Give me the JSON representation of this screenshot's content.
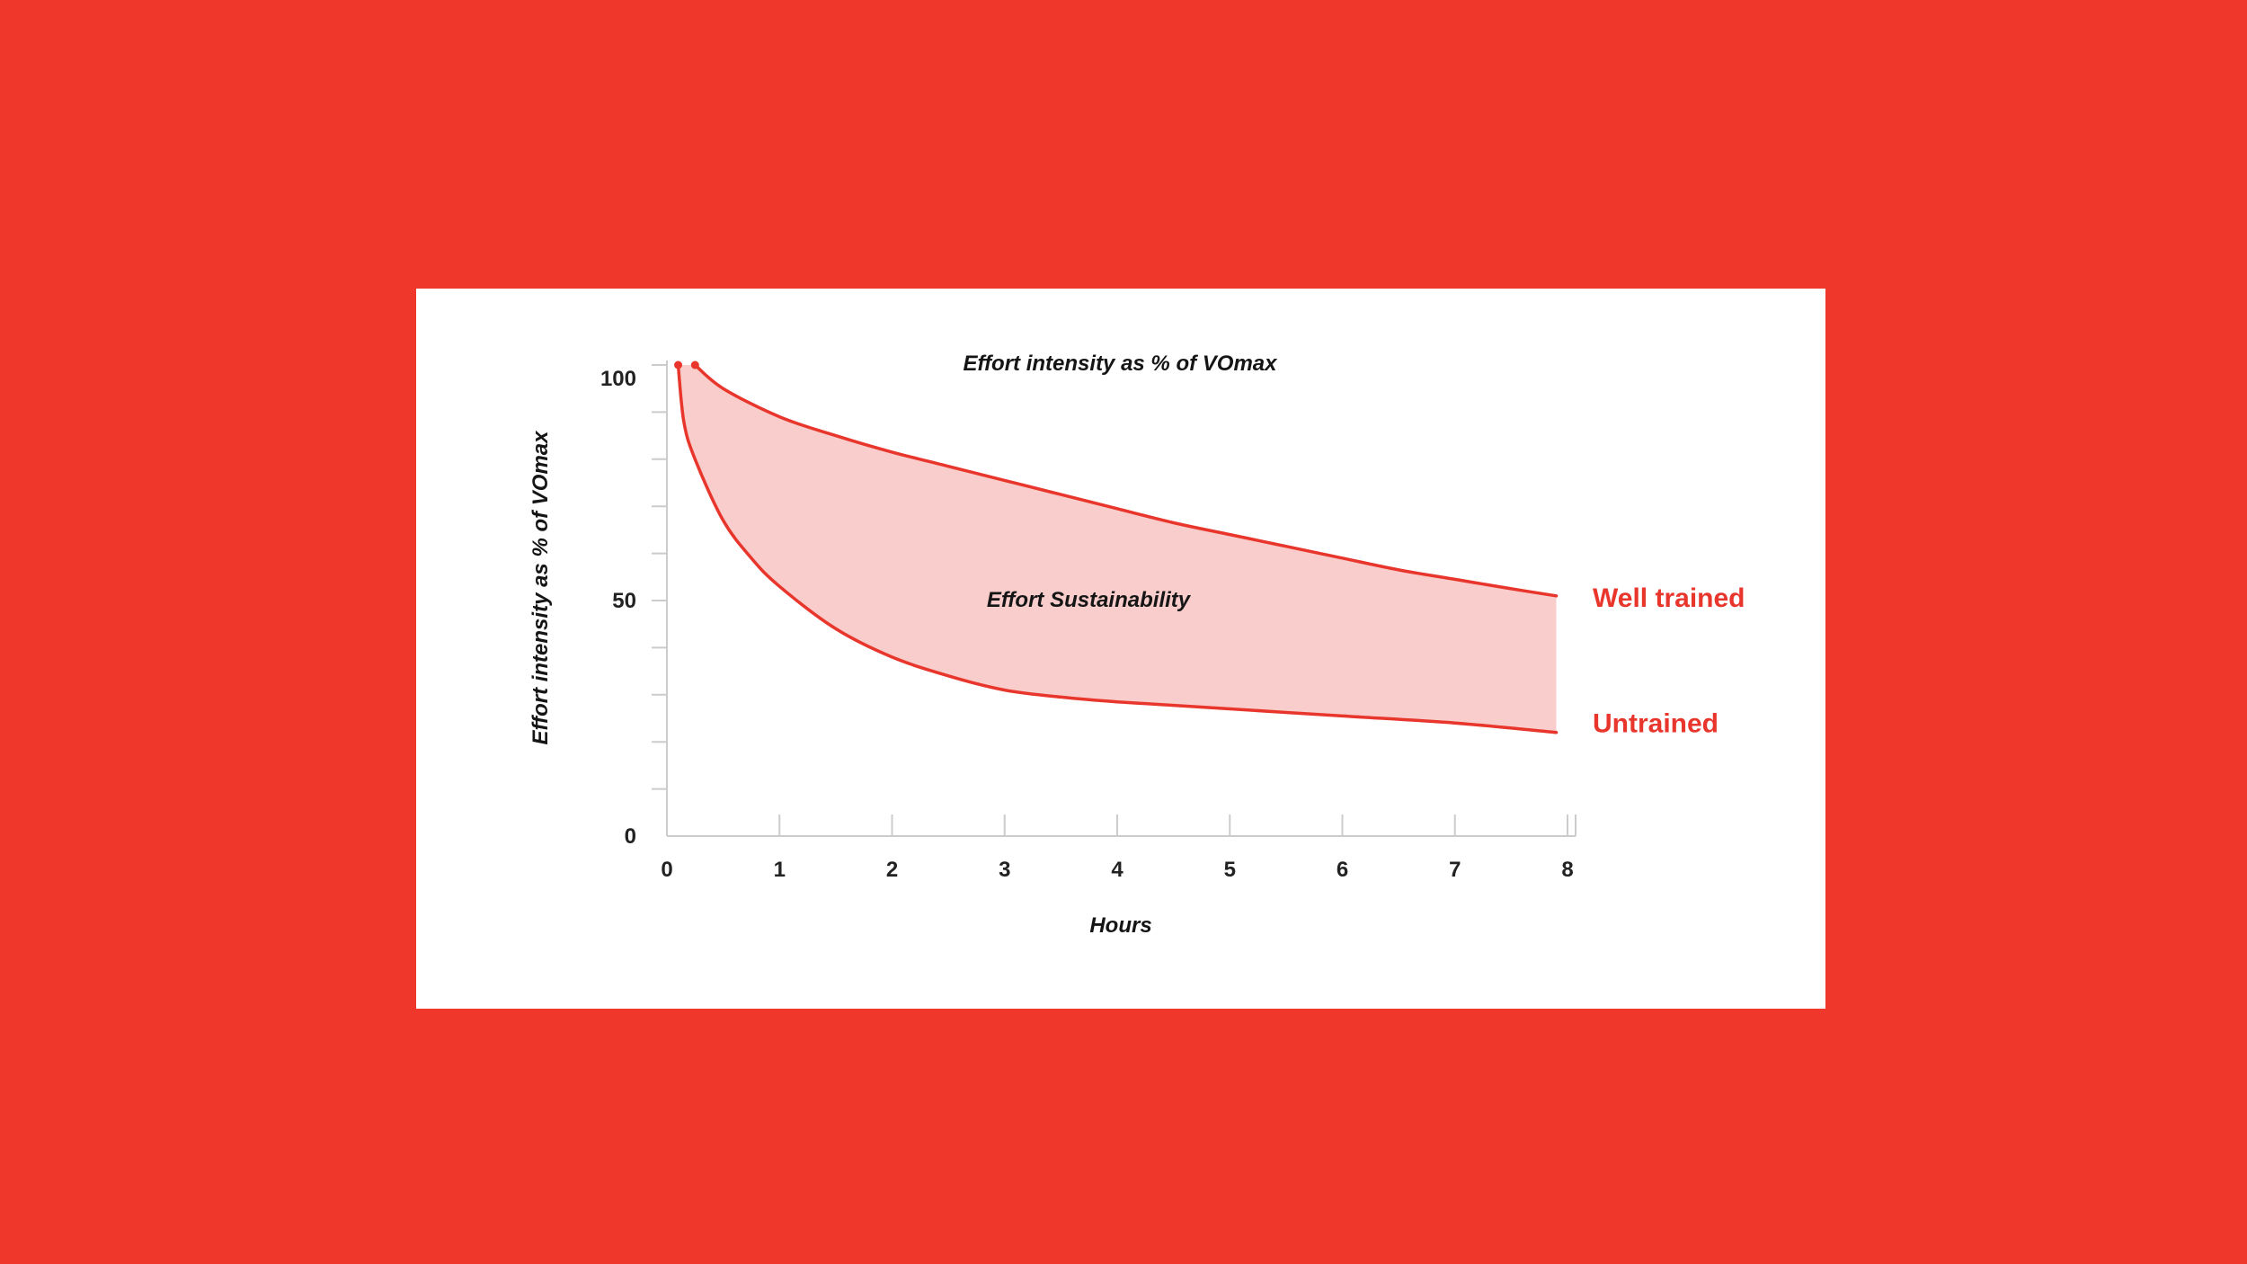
{
  "colors": {
    "background": "#EF372C",
    "card": "#FFFFFF",
    "line": "#E8362C",
    "band": "#F9CDCB",
    "axis": "#CCCCCC",
    "text": "#151515"
  },
  "chart_data": {
    "type": "area",
    "title": "Effort intensity as % of VOmax",
    "xlabel": "Hours",
    "ylabel": "Effort intensity as % of VOmax",
    "xlim": [
      0,
      8
    ],
    "ylim": [
      0,
      100
    ],
    "x_ticks": [
      "0",
      "1",
      "2",
      "3",
      "4",
      "5",
      "6",
      "7",
      "8"
    ],
    "y_ticks": [
      "0",
      "50",
      "100"
    ],
    "annotation": "Effort Sustainability",
    "grid": false,
    "legend": "right, at line ends",
    "series": [
      {
        "name": "Well trained",
        "color": "#E8362C",
        "x": [
          0.25,
          0.5,
          1,
          1.5,
          2,
          2.5,
          3,
          3.5,
          4,
          4.5,
          5,
          5.5,
          6,
          6.5,
          7,
          7.5,
          7.9
        ],
        "y": [
          100,
          95,
          89,
          85,
          81.5,
          78.5,
          75.5,
          72.5,
          69.5,
          66.5,
          64,
          61.5,
          59,
          56.5,
          54.5,
          52.5,
          51
        ]
      },
      {
        "name": "Untrained",
        "color": "#E8362C",
        "x": [
          0.1,
          0.15,
          0.25,
          0.5,
          0.75,
          1,
          1.5,
          2,
          2.5,
          3,
          3.5,
          4,
          5,
          6,
          7,
          7.9
        ],
        "y": [
          100,
          88,
          80,
          67,
          59,
          53,
          44,
          38,
          34,
          31,
          29.5,
          28.5,
          27,
          25.5,
          24,
          22
        ]
      }
    ]
  }
}
